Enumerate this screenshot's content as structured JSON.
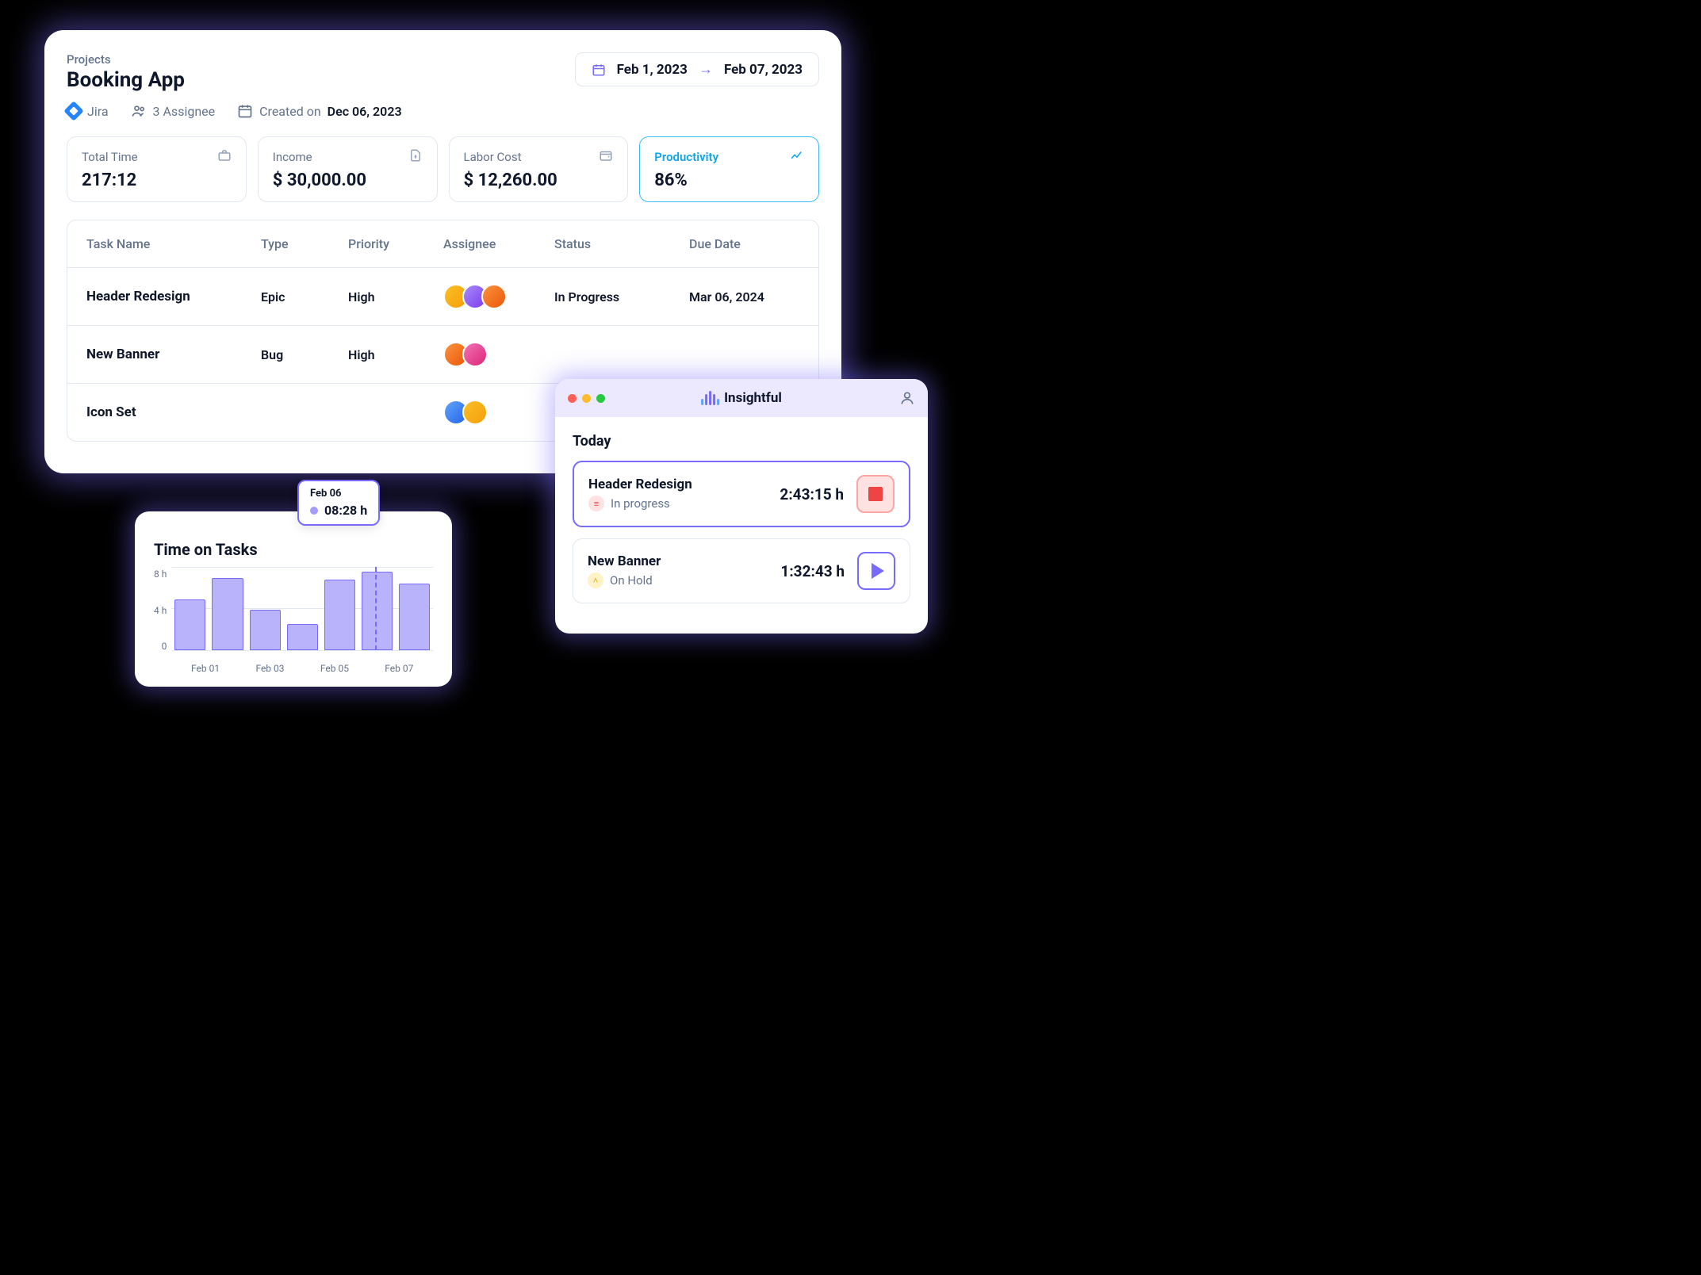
{
  "header": {
    "breadcrumb": "Projects",
    "title": "Booking App",
    "date_from": "Feb 1, 2023",
    "date_to": "Feb 07, 2023"
  },
  "meta": {
    "integration": "Jira",
    "assignee_count": "3 Assignee",
    "created_label": "Created on",
    "created_date": "Dec 06, 2023"
  },
  "stats": [
    {
      "label": "Total Time",
      "value": "217:12",
      "icon": "briefcase"
    },
    {
      "label": "Income",
      "value": "$ 30,000.00",
      "icon": "file-dollar"
    },
    {
      "label": "Labor Cost",
      "value": "$ 12,260.00",
      "icon": "wallet"
    },
    {
      "label": "Productivity",
      "value": "86%",
      "icon": "trend",
      "active": true
    }
  ],
  "table": {
    "columns": [
      "Task Name",
      "Type",
      "Priority",
      "Assignee",
      "Status",
      "Due Date"
    ],
    "rows": [
      {
        "name": "Header Redesign",
        "type": "Epic",
        "priority": "High",
        "assignees": 3,
        "status": "In Progress",
        "due": "Mar 06, 2024"
      },
      {
        "name": "New Banner",
        "type": "Bug",
        "priority": "High",
        "assignees": 2,
        "status": "",
        "due": ""
      },
      {
        "name": "Icon Set",
        "type": "",
        "priority": "",
        "assignees": 2,
        "status": "",
        "due": ""
      }
    ]
  },
  "chart": {
    "title": "Time on Tasks",
    "y_ticks": [
      "8 h",
      "4 h",
      "0"
    ],
    "x_labels": [
      "Feb 01",
      "Feb 03",
      "Feb 05",
      "Feb 07"
    ],
    "bars": [
      5.5,
      7.8,
      4.4,
      2.8,
      7.6,
      8.5,
      7.2
    ],
    "y_max": 9,
    "bar_fill": "#b9b3fb",
    "bar_border": "#776afc",
    "tooltip": {
      "date": "Feb 06",
      "value": "08:28 h",
      "bar_index": 5
    }
  },
  "timer": {
    "brand": "Insightful",
    "today_label": "Today",
    "tasks": [
      {
        "name": "Header Redesign",
        "status_label": "In progress",
        "status": "prog",
        "time": "2:43:15 h",
        "action": "stop",
        "active": true
      },
      {
        "name": "New Banner",
        "status_label": "On Hold",
        "status": "hold",
        "time": "1:32:43 h",
        "action": "play",
        "active": false
      }
    ]
  },
  "colors": {
    "accent": "#776afc",
    "text": "#0f172a",
    "muted": "#64748b",
    "border": "#e2e8f0",
    "active_border": "#38bdf8"
  }
}
